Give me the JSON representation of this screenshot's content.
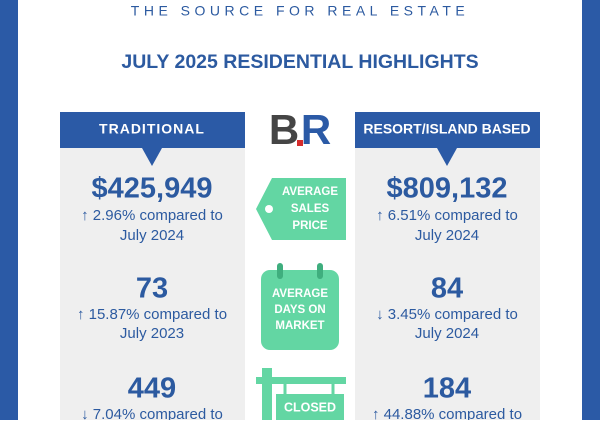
{
  "header": {
    "tagline": "THE SOURCE FOR REAL ESTATE",
    "title": "JULY 2025 RESIDENTIAL HIGHLIGHTS"
  },
  "logo": {
    "left": "B",
    "right": "R"
  },
  "columns": [
    {
      "heading": "TRADITIONAL",
      "stats": [
        {
          "value": "$425,949",
          "change": "↑ 2.96% compared to",
          "period": "July 2024"
        },
        {
          "value": "73",
          "change": "↑ 15.87% compared to",
          "period": "July 2023"
        },
        {
          "value": "449",
          "change": "↓ 7.04% compared to"
        }
      ]
    },
    {
      "heading": "RESORT/ISLAND BASED",
      "stats": [
        {
          "value": "$809,132",
          "change": "↑ 6.51% compared to",
          "period": "July 2024"
        },
        {
          "value": "84",
          "change": "↓ 3.45% compared to",
          "period": "July 2024"
        },
        {
          "value": "184",
          "change": "↑ 44.88% compared to"
        }
      ]
    }
  ],
  "metrics": [
    {
      "lines": [
        "AVERAGE",
        "SALES",
        "PRICE"
      ]
    },
    {
      "lines": [
        "AVERAGE",
        "DAYS ON",
        "MARKET"
      ]
    },
    {
      "lines": [
        "CLOSED"
      ]
    }
  ]
}
